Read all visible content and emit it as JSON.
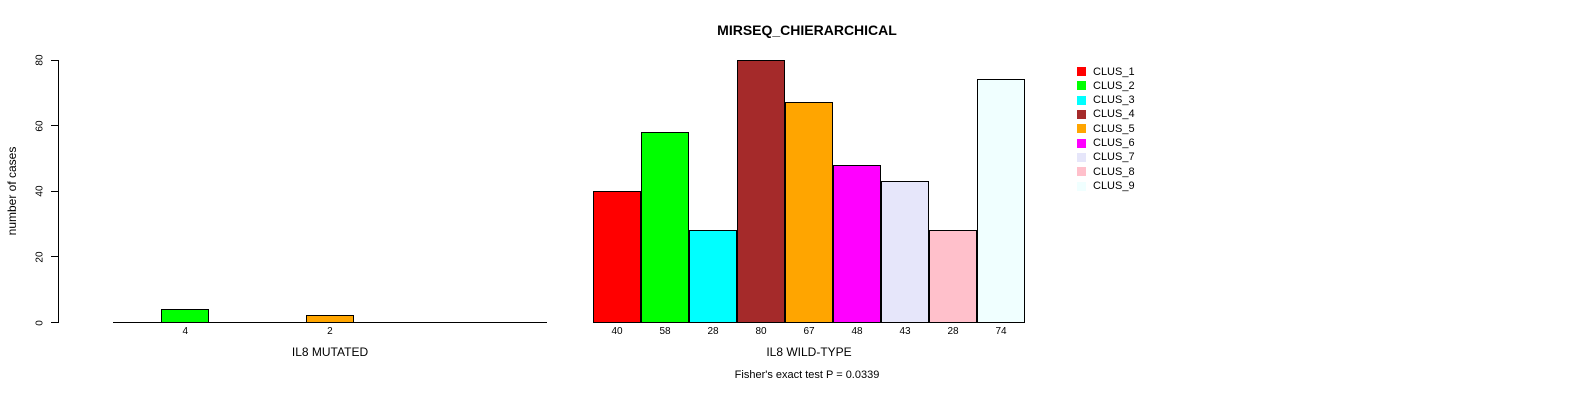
{
  "chart_data": {
    "type": "bar",
    "title": "MIRSEQ_CHIERARCHICAL",
    "ylabel": "number of cases",
    "ylim": [
      0,
      80
    ],
    "yticks": [
      0,
      20,
      40,
      60,
      80
    ],
    "grid": false,
    "legend_position": "right",
    "categories": [
      "CLUS_1",
      "CLUS_2",
      "CLUS_3",
      "CLUS_4",
      "CLUS_5",
      "CLUS_6",
      "CLUS_7",
      "CLUS_8",
      "CLUS_9"
    ],
    "colors": [
      "#FF0000",
      "#00FF00",
      "#00FFFF",
      "#A52A2A",
      "#FFA500",
      "#FF00FF",
      "#E6E6FA",
      "#FFC0CB",
      "#F0FFFF"
    ],
    "panels": [
      {
        "xlabel": "IL8 MUTATED",
        "values": [
          0,
          4,
          0,
          0,
          2,
          0,
          0,
          0,
          0
        ],
        "bar_labels": [
          "",
          "4",
          "",
          "",
          "2",
          "",
          "",
          "",
          ""
        ]
      },
      {
        "xlabel": "IL8 WILD-TYPE",
        "values": [
          40,
          58,
          28,
          80,
          67,
          48,
          43,
          28,
          74
        ],
        "bar_labels": [
          "40",
          "58",
          "28",
          "80",
          "67",
          "48",
          "43",
          "28",
          "74"
        ]
      }
    ],
    "legend": [
      "CLUS_1",
      "CLUS_2",
      "CLUS_3",
      "CLUS_4",
      "CLUS_5",
      "CLUS_6",
      "CLUS_7",
      "CLUS_8",
      "CLUS_9"
    ],
    "annotation": "Fisher's exact test P = 0.0339"
  }
}
